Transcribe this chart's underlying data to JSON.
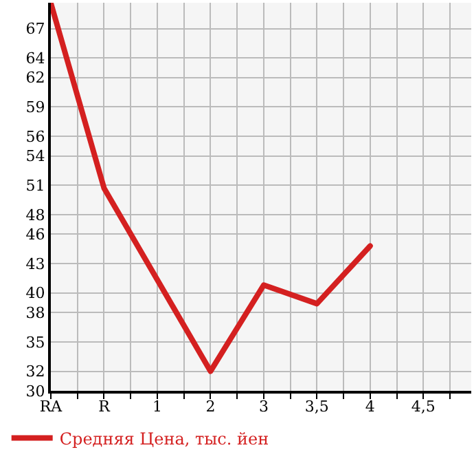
{
  "chart_data": {
    "type": "line",
    "categories": [
      "RA",
      "R",
      "1",
      "2",
      "3",
      "3,5",
      "4",
      "4,5"
    ],
    "series": [
      {
        "name": "Средняя Цена, тыс. йен",
        "color": "#d42020",
        "values": [
          69.6,
          50.7,
          null,
          32.0,
          40.8,
          38.9,
          44.8,
          null
        ]
      }
    ],
    "ylim": [
      30,
      69.64
    ],
    "yticks": [
      30,
      32,
      35,
      38,
      40,
      43,
      46,
      48,
      51,
      54,
      56,
      59,
      62,
      64,
      67
    ],
    "grid": true,
    "legend": "bottom left",
    "marker": "none",
    "line_style": "solid"
  }
}
